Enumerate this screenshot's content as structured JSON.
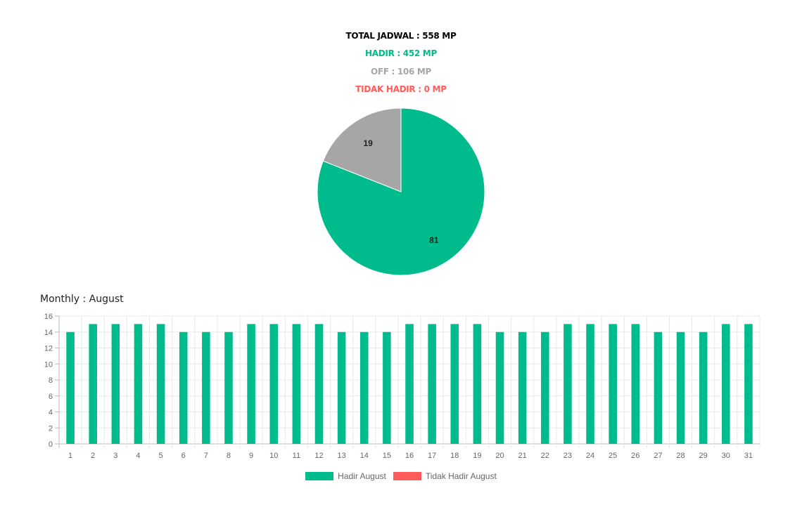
{
  "summary": {
    "total": "TOTAL JADWAL : 558 MP",
    "hadir": "HADIR : 452 MP",
    "off": "OFF : 106 MP",
    "tidak_hadir": "TIDAK HADIR : 0 MP"
  },
  "colors": {
    "hadir": "#00bc8c",
    "off": "#a6a6a6",
    "tidak_hadir": "#ff5b5b",
    "grid": "#e8e8e8",
    "tick": "#666666"
  },
  "monthly_title": "Monthly : August",
  "chart_data": [
    {
      "type": "pie",
      "slices": [
        {
          "label": "",
          "value": 81,
          "color": "#00bc8c"
        },
        {
          "label": "",
          "value": 19,
          "color": "#a6a6a6"
        }
      ],
      "data_labels": [
        "81",
        "19"
      ]
    },
    {
      "type": "bar",
      "title": "Monthly : August",
      "categories": [
        "1",
        "2",
        "3",
        "4",
        "5",
        "6",
        "7",
        "8",
        "9",
        "10",
        "11",
        "12",
        "13",
        "14",
        "15",
        "16",
        "17",
        "18",
        "19",
        "20",
        "21",
        "22",
        "23",
        "24",
        "25",
        "26",
        "27",
        "28",
        "29",
        "30",
        "31"
      ],
      "series": [
        {
          "name": "Hadir August",
          "color": "#00bc8c",
          "values": [
            14,
            15,
            15,
            15,
            15,
            14,
            14,
            14,
            15,
            15,
            15,
            15,
            14,
            14,
            14,
            15,
            15,
            15,
            15,
            14,
            14,
            14,
            15,
            15,
            15,
            15,
            14,
            14,
            14,
            15,
            15
          ]
        },
        {
          "name": "Tidak Hadir August",
          "color": "#ff5b5b",
          "values": [
            0,
            0,
            0,
            0,
            0,
            0,
            0,
            0,
            0,
            0,
            0,
            0,
            0,
            0,
            0,
            0,
            0,
            0,
            0,
            0,
            0,
            0,
            0,
            0,
            0,
            0,
            0,
            0,
            0,
            0,
            0
          ]
        }
      ],
      "ylim": [
        0,
        16
      ],
      "yticks": [
        0,
        2,
        4,
        6,
        8,
        10,
        12,
        14,
        16
      ],
      "grid": true,
      "legend": "bottom"
    }
  ]
}
